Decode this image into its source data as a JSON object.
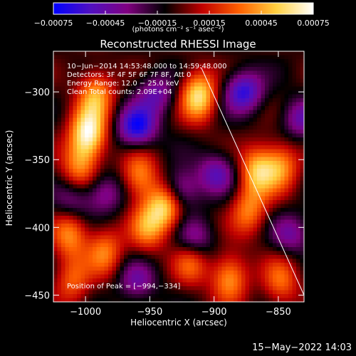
{
  "chart_data": {
    "type": "heatmap",
    "title": "Reconstructed RHESSI Image",
    "xlabel": "Heliocentric X (arcsec)",
    "ylabel": "Heliocentric Y (arcsec)",
    "xlim": [
      -1025,
      -830
    ],
    "ylim": [
      -455,
      -270
    ],
    "xticks": [
      -1000,
      -950,
      -900,
      -850
    ],
    "yticks": [
      -300,
      -350,
      -400,
      -450
    ],
    "xtick_labels": [
      "−1000",
      "−950",
      "−900",
      "−850"
    ],
    "ytick_labels": [
      "−300",
      "−350",
      "−400",
      "−450"
    ],
    "colorbar": {
      "range": [
        -0.00075,
        0.00075
      ],
      "tick_labels": [
        "−0.00075",
        "−0.00045",
        "−0.00015",
        "0.00015",
        "0.00045",
        "0.00075"
      ],
      "tick_values": [
        -0.00075,
        -0.00045,
        -0.00015,
        0.00015,
        0.00045,
        0.00075
      ],
      "unit": "(photons cm⁻² s⁻¹ asec⁻²)",
      "colormap": [
        "#0000ff",
        "#5010c0",
        "#800080",
        "#000000",
        "#c00000",
        "#ff6000",
        "#ffd040",
        "#ffffff"
      ]
    },
    "hot_sources": [
      {
        "x": -998,
        "y": -331,
        "level": 1.0
      },
      {
        "x": -912,
        "y": -303,
        "level": 0.9
      },
      {
        "x": -992,
        "y": -302,
        "level": 0.65
      },
      {
        "x": -1005,
        "y": -355,
        "level": 0.55
      },
      {
        "x": -958,
        "y": -362,
        "level": 0.6
      },
      {
        "x": -938,
        "y": -384,
        "level": 0.85
      },
      {
        "x": -952,
        "y": -400,
        "level": 0.55
      },
      {
        "x": -866,
        "y": -358,
        "level": 0.75
      },
      {
        "x": -848,
        "y": -355,
        "level": 0.6
      },
      {
        "x": -873,
        "y": -388,
        "level": 0.55
      },
      {
        "x": -1012,
        "y": -405,
        "level": 0.6
      },
      {
        "x": -985,
        "y": -418,
        "level": 0.55
      },
      {
        "x": -918,
        "y": -425,
        "level": 0.5
      },
      {
        "x": -888,
        "y": -437,
        "level": 0.65
      },
      {
        "x": -848,
        "y": -440,
        "level": 0.5
      },
      {
        "x": -1010,
        "y": -440,
        "level": 0.45
      }
    ],
    "cold_sources": [
      {
        "x": -960,
        "y": -326,
        "level": -0.85
      },
      {
        "x": -877,
        "y": -300,
        "level": -0.75
      },
      {
        "x": -945,
        "y": -302,
        "level": -0.5
      },
      {
        "x": -927,
        "y": -372,
        "level": -0.6
      },
      {
        "x": -898,
        "y": -360,
        "level": -0.55
      },
      {
        "x": -915,
        "y": -409,
        "level": -0.5
      },
      {
        "x": -985,
        "y": -375,
        "level": -0.45
      },
      {
        "x": -1010,
        "y": -380,
        "level": -0.4
      },
      {
        "x": -832,
        "y": -320,
        "level": -0.5
      },
      {
        "x": -840,
        "y": -405,
        "level": -0.45
      },
      {
        "x": -960,
        "y": -440,
        "level": -0.45
      }
    ],
    "limb_line": {
      "x": [
        -910,
        -830
      ],
      "y": [
        -282,
        -450
      ]
    },
    "annotations": {
      "time": "10−Jun−2014 14:53:48.000 to 14:59:48.000",
      "detectors": "Detectors: 3F 4F 5F 6F 7F 8F, Att 0",
      "energy": "Energy Range: 12.0 − 25.0 keV",
      "method": "Clean     Total counts: 2.09E+04",
      "peak": "Position of Peak = [−994,−334]"
    }
  },
  "footer": {
    "timestamp": "15−May−2022 14:03"
  }
}
